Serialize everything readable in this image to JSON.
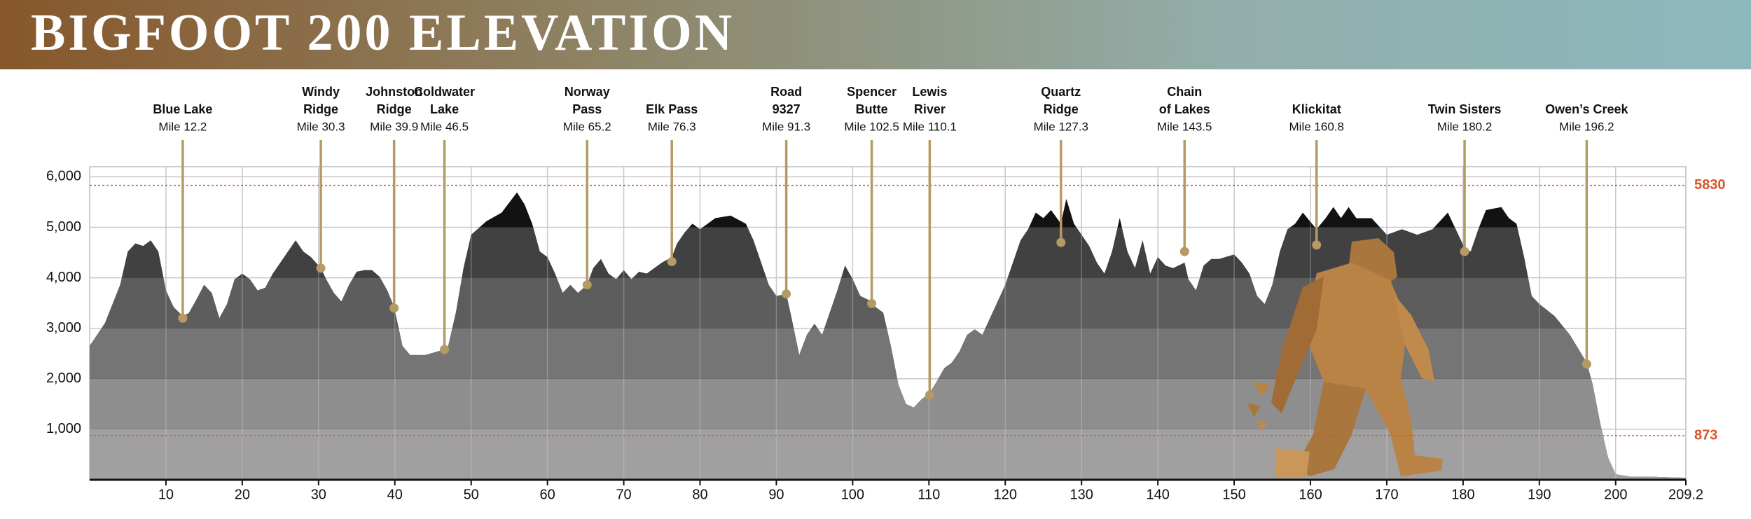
{
  "chart_data": {
    "type": "area",
    "title": "BIGFOOT 200 ELEVATION",
    "x": [
      0,
      2,
      4,
      5,
      6,
      7,
      8,
      9,
      10,
      11,
      12.2,
      13,
      14,
      15,
      16,
      17,
      18,
      19,
      20,
      21,
      22,
      23,
      24,
      25,
      26,
      27,
      28,
      29,
      30.3,
      31,
      32,
      33,
      34,
      35,
      36,
      37,
      38,
      39,
      39.9,
      41,
      42,
      44,
      46.5,
      47,
      48,
      49,
      50,
      52,
      54,
      56,
      57,
      58,
      59,
      60,
      61,
      62,
      63,
      64,
      65.2,
      66,
      67,
      68,
      69,
      70,
      71,
      72,
      73,
      74,
      75,
      76.3,
      77,
      78,
      79,
      80,
      82,
      84,
      86,
      87,
      88,
      89,
      90,
      91.3,
      92,
      93,
      94,
      95,
      96,
      97,
      98,
      99,
      100,
      101,
      102.5,
      103,
      104,
      105,
      106,
      107,
      108,
      109,
      110.1,
      111,
      112,
      113,
      114,
      115,
      116,
      117,
      118,
      119,
      120,
      121,
      122,
      123,
      124,
      125,
      126,
      127.3,
      128,
      129,
      130,
      131,
      132,
      133,
      134,
      135,
      136,
      137,
      138,
      139,
      140,
      141,
      142,
      143.5,
      144,
      145,
      146,
      147,
      148,
      150,
      151,
      152,
      153,
      154,
      155,
      156,
      157,
      158,
      159,
      160.8,
      162,
      163,
      164,
      165,
      166,
      168,
      170,
      172,
      174,
      176,
      178,
      180.2,
      181,
      182,
      183,
      185,
      186,
      187,
      188,
      189,
      190,
      192,
      194,
      196.2,
      197,
      198,
      199,
      200,
      202,
      205,
      209.2
    ],
    "values": [
      2650,
      3100,
      3860,
      4520,
      4680,
      4630,
      4740,
      4520,
      3750,
      3420,
      3240,
      3300,
      3570,
      3860,
      3700,
      3200,
      3480,
      3970,
      4080,
      3970,
      3750,
      3800,
      4080,
      4300,
      4520,
      4740,
      4520,
      4410,
      4190,
      3970,
      3700,
      3530,
      3860,
      4120,
      4150,
      4150,
      4020,
      3750,
      3420,
      2650,
      2470,
      2470,
      2580,
      2650,
      3310,
      4190,
      4850,
      5120,
      5290,
      5690,
      5450,
      5070,
      4520,
      4410,
      4080,
      3700,
      3860,
      3700,
      3860,
      4190,
      4370,
      4080,
      3970,
      4150,
      3970,
      4120,
      4080,
      4190,
      4300,
      4410,
      4680,
      4900,
      5070,
      4960,
      5180,
      5230,
      5070,
      4740,
      4300,
      3860,
      3640,
      3680,
      3200,
      2470,
      2870,
      3090,
      2870,
      3310,
      3750,
      4240,
      3970,
      3640,
      3530,
      3420,
      3310,
      2650,
      1880,
      1500,
      1430,
      1590,
      1720,
      1940,
      2210,
      2320,
      2540,
      2870,
      2980,
      2870,
      3200,
      3530,
      3860,
      4300,
      4740,
      4960,
      5290,
      5180,
      5340,
      5070,
      5560,
      5070,
      4850,
      4630,
      4300,
      4080,
      4520,
      5180,
      4520,
      4190,
      4740,
      4080,
      4410,
      4240,
      4190,
      4300,
      3970,
      3750,
      4240,
      4370,
      4370,
      4460,
      4300,
      4080,
      3640,
      3480,
      3860,
      4520,
      4960,
      5070,
      5290,
      4960,
      5180,
      5400,
      5180,
      5400,
      5180,
      5180,
      4850,
      4960,
      4850,
      4960,
      5290,
      4590,
      4520,
      4960,
      5340,
      5400,
      5180,
      5070,
      4410,
      3640,
      3480,
      3240,
      2870,
      2320,
      1880,
      1100,
      440,
      110,
      60,
      60,
      40
    ],
    "band_colors": [
      "#a0a0a0",
      "#8e8e8e",
      "#757575",
      "#5d5d5d",
      "#414141",
      "#121212"
    ],
    "xlim": [
      0,
      209.2
    ],
    "xticks": [
      10,
      20,
      30,
      40,
      50,
      60,
      70,
      80,
      90,
      100,
      110,
      120,
      130,
      140,
      150,
      160,
      170,
      180,
      190,
      200,
      209.2
    ],
    "ylim": [
      0,
      6200
    ],
    "yticks": [
      {
        "value": 1000,
        "label": "1,000"
      },
      {
        "value": 2000,
        "label": "2,000"
      },
      {
        "value": 3000,
        "label": "3,000"
      },
      {
        "value": 4000,
        "label": "4,000"
      },
      {
        "value": 5000,
        "label": "5,000"
      },
      {
        "value": 6000,
        "label": "6,000"
      }
    ],
    "grid": true,
    "reference_lines": [
      {
        "value": 5830,
        "label": "5830",
        "color": "#d9542a"
      },
      {
        "value": 873,
        "label": "873",
        "color": "#d9542a"
      }
    ],
    "marker_color": "#b59a64",
    "stations": [
      {
        "name": [
          "Blue Lake"
        ],
        "label": "Mile 12.2",
        "mile": 12.2,
        "elevation": 3200
      },
      {
        "name": [
          "Windy",
          "Ridge"
        ],
        "label": "Mile 30.3",
        "mile": 30.3,
        "elevation": 4190
      },
      {
        "name": [
          "Johnston",
          "Ridge"
        ],
        "label": "Mile 39.9",
        "mile": 39.9,
        "elevation": 3400
      },
      {
        "name": [
          "Coldwater",
          "Lake"
        ],
        "label": "Mile 46.5",
        "mile": 46.5,
        "elevation": 2580
      },
      {
        "name": [
          "Norway",
          "Pass"
        ],
        "label": "Mile 65.2",
        "mile": 65.2,
        "elevation": 3860
      },
      {
        "name": [
          "Elk Pass"
        ],
        "label": "Mile 76.3",
        "mile": 76.3,
        "elevation": 4320
      },
      {
        "name": [
          "Road",
          "9327"
        ],
        "label": "Mile 91.3",
        "mile": 91.3,
        "elevation": 3680
      },
      {
        "name": [
          "Spencer",
          "Butte"
        ],
        "label": "Mile 102.5",
        "mile": 102.5,
        "elevation": 3490
      },
      {
        "name": [
          "Lewis",
          "River"
        ],
        "label": "Mile 110.1",
        "mile": 110.1,
        "elevation": 1680
      },
      {
        "name": [
          "Quartz",
          "Ridge"
        ],
        "label": "Mile 127.3",
        "mile": 127.3,
        "elevation": 4700
      },
      {
        "name": [
          "Chain",
          "of Lakes"
        ],
        "label": "Mile 143.5",
        "mile": 143.5,
        "elevation": 4520
      },
      {
        "name": [
          "Klickitat"
        ],
        "label": "Mile 160.8",
        "mile": 160.8,
        "elevation": 4650
      },
      {
        "name": [
          "Twin Sisters"
        ],
        "label": "Mile 180.2",
        "mile": 180.2,
        "elevation": 4520
      },
      {
        "name": [
          "Owen’s Creek"
        ],
        "label": "Mile 196.2",
        "mile": 196.2,
        "elevation": 2290
      }
    ]
  }
}
